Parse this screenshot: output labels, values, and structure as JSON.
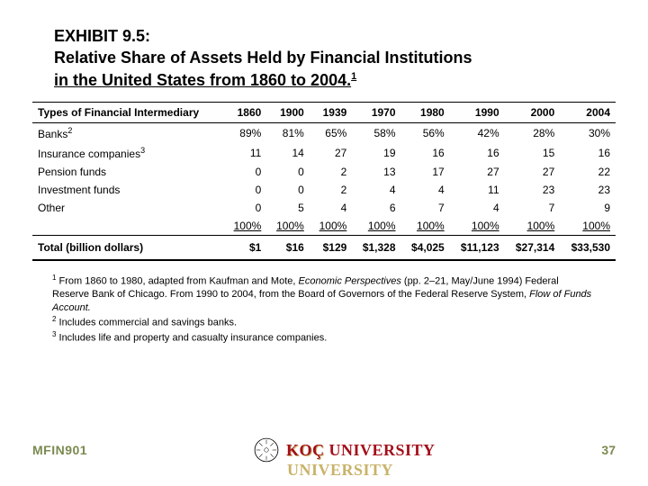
{
  "title": {
    "line1": "EXHIBIT 9.5:",
    "line2a": "Relative Share of Assets Held by Financial Institutions",
    "line2b": "in the United States from 1860 to 2004.",
    "sup": "1"
  },
  "table": {
    "header_label": "Types of Financial Intermediary",
    "years": [
      "1860",
      "1900",
      "1939",
      "1970",
      "1980",
      "1990",
      "2000",
      "2004"
    ],
    "rows": [
      {
        "label": "Banks",
        "sup": "2",
        "values": [
          "89%",
          "81%",
          "65%",
          "58%",
          "56%",
          "42%",
          "28%",
          "30%"
        ]
      },
      {
        "label": "Insurance companies",
        "sup": "3",
        "values": [
          "11",
          "14",
          "27",
          "19",
          "16",
          "16",
          "15",
          "16"
        ]
      },
      {
        "label": "Pension funds",
        "sup": "",
        "values": [
          "0",
          "0",
          "2",
          "13",
          "17",
          "27",
          "27",
          "22"
        ]
      },
      {
        "label": "Investment funds",
        "sup": "",
        "values": [
          "0",
          "0",
          "2",
          "4",
          "4",
          "11",
          "23",
          "23"
        ]
      },
      {
        "label": "Other",
        "sup": "",
        "values": [
          "0",
          "5",
          "4",
          "6",
          "7",
          "4",
          "7",
          "9"
        ]
      }
    ],
    "totals_row": [
      "100%",
      "100%",
      "100%",
      "100%",
      "100%",
      "100%",
      "100%",
      "100%"
    ],
    "grand_label": "Total (billion dollars)",
    "grand_values": [
      "$1",
      "$16",
      "$129",
      "$1,328",
      "$4,025",
      "$11,123",
      "$27,314",
      "$33,530"
    ]
  },
  "footnotes": {
    "f1a": " From 1860 to 1980, adapted from Kaufman and Mote, ",
    "f1_it1": "Economic Perspectives",
    "f1b": " (pp. 2–21, May/June 1994) Federal Reserve Bank of Chicago. From 1990 to 2004, from the Board of Governors of the Federal Reserve System, ",
    "f1_it2": "Flow of Funds Account.",
    "f2": " Includes commercial and savings banks.",
    "f3": " Includes life and property and casualty insurance companies."
  },
  "footer": {
    "course": "MFIN901",
    "university": "KOÇ UNIVERSITY",
    "page": "37"
  },
  "colors": {
    "olive": "#7a8a4f",
    "maroon": "#a30f1a"
  }
}
